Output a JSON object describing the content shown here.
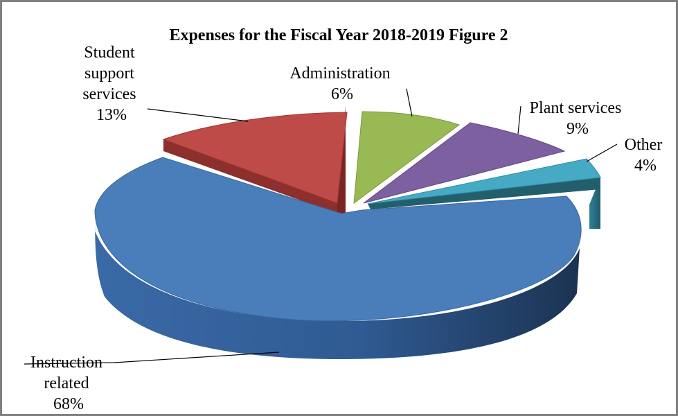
{
  "chart_data": {
    "type": "pie",
    "title": "Expenses for the Fiscal Year 2018-2019 Figure 2",
    "three_d": true,
    "exploded": true,
    "legend": "none",
    "slices": [
      {
        "label_lines": [
          "Instruction",
          "related"
        ],
        "value": 68,
        "percent_label": "68%",
        "color": "#4a7ebb"
      },
      {
        "label_lines": [
          "Student",
          "support",
          "services"
        ],
        "value": 13,
        "percent_label": "13%",
        "color": "#be4b48"
      },
      {
        "label_lines": [
          "Administration"
        ],
        "value": 6,
        "percent_label": "6%",
        "color": "#98b954"
      },
      {
        "label_lines": [
          "Plant services"
        ],
        "value": 9,
        "percent_label": "9%",
        "color": "#7d60a0"
      },
      {
        "label_lines": [
          "Other"
        ],
        "value": 4,
        "percent_label": "4%",
        "color": "#46aac5"
      }
    ]
  }
}
